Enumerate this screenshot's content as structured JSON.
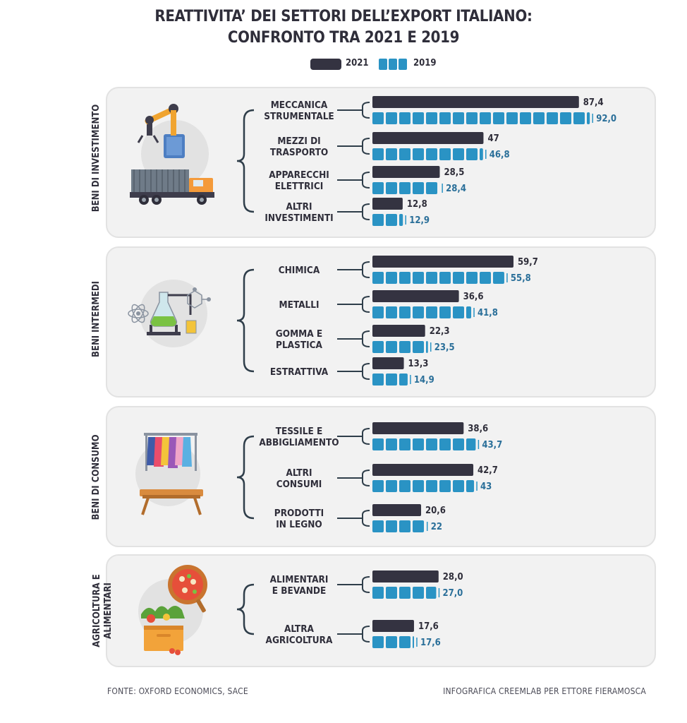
{
  "title": {
    "line1": "REATTIVITA’ DEI SETTORI DELL’EXPORT ITALIANO:",
    "line2": "CONFRONTO TRA 2021 E 2019"
  },
  "legend": {
    "label_2021": "2021",
    "label_2019": "2019"
  },
  "colors": {
    "dark": "#343341",
    "blue": "#2a93c4",
    "blue_text": "#2a6f99",
    "panel": "#f2f2f2"
  },
  "chart_data": {
    "type": "bar",
    "title": "REATTIVITA’ DEI SETTORI DELL’EXPORT ITALIANO: CONFRONTO TRA 2021 E 2019",
    "series_names": [
      "2021",
      "2019"
    ],
    "xlim": [
      0,
      100
    ],
    "groups": [
      {
        "name": "BENI DI INVESTIMENTO",
        "icon": "robot-arm-truck-icon",
        "categories": [
          {
            "lines": [
              "MECCANICA",
              "STRUMENTALE"
            ],
            "v2021": 87.4,
            "l2021": "87,4",
            "v2019": 92.0,
            "l2019": "92,0"
          },
          {
            "lines": [
              "MEZZI DI",
              "TRASPORTO"
            ],
            "v2021": 47,
            "l2021": "47",
            "v2019": 46.8,
            "l2019": "46,8"
          },
          {
            "lines": [
              "APPARECCHI",
              "ELETTRICI"
            ],
            "v2021": 28.5,
            "l2021": "28,5",
            "v2019": 28.4,
            "l2019": "28,4"
          },
          {
            "lines": [
              "ALTRI",
              "INVESTIMENTI"
            ],
            "v2021": 12.8,
            "l2021": "12,8",
            "v2019": 12.9,
            "l2019": "12,9"
          }
        ]
      },
      {
        "name": "BENI INTERMEDI",
        "icon": "chemistry-flask-icon",
        "categories": [
          {
            "lines": [
              "CHIMICA"
            ],
            "v2021": 59.7,
            "l2021": "59,7",
            "v2019": 55.8,
            "l2019": "55,8"
          },
          {
            "lines": [
              "METALLI"
            ],
            "v2021": 36.6,
            "l2021": "36,6",
            "v2019": 41.8,
            "l2019": "41,8"
          },
          {
            "lines": [
              "GOMMA E",
              "PLASTICA"
            ],
            "v2021": 22.3,
            "l2021": "22,3",
            "v2019": 23.5,
            "l2019": "23,5"
          },
          {
            "lines": [
              "ESTRATTIVA"
            ],
            "v2021": 13.3,
            "l2021": "13,3",
            "v2019": 14.9,
            "l2019": "14,9"
          }
        ]
      },
      {
        "name": "BENI DI CONSUMO",
        "icon": "clothes-rack-table-icon",
        "categories": [
          {
            "lines": [
              "TESSILE E",
              "ABBIGLIAMENTO"
            ],
            "v2021": 38.6,
            "l2021": "38,6",
            "v2019": 43.7,
            "l2019": "43,7"
          },
          {
            "lines": [
              "ALTRI",
              "CONSUMI"
            ],
            "v2021": 42.7,
            "l2021": "42,7",
            "v2019": 43,
            "l2019": "43"
          },
          {
            "lines": [
              "PRODOTTI",
              "IN LEGNO"
            ],
            "v2021": 20.6,
            "l2021": "20,6",
            "v2019": 22,
            "l2019": "22"
          }
        ]
      },
      {
        "name": "AGRICOLTURA E ALIMENTARI",
        "name_lines": [
          "AGRICOLTURA E",
          "ALIMENTARI"
        ],
        "icon": "pizza-vegetable-crate-icon",
        "categories": [
          {
            "lines": [
              "ALIMENTARI",
              "E BEVANDE"
            ],
            "v2021": 28.0,
            "l2021": "28,0",
            "v2019": 27.0,
            "l2019": "27,0"
          },
          {
            "lines": [
              "ALTRA",
              "AGRICOLTURA"
            ],
            "v2021": 17.6,
            "l2021": "17,6",
            "v2019": 17.6,
            "l2019": "17,6"
          }
        ]
      }
    ]
  },
  "footer": {
    "source": "FONTE: OXFORD ECONOMICS, SACE",
    "credit": "INFOGRAFICA CREEMLAB PER ETTORE FIERAMOSCA"
  }
}
